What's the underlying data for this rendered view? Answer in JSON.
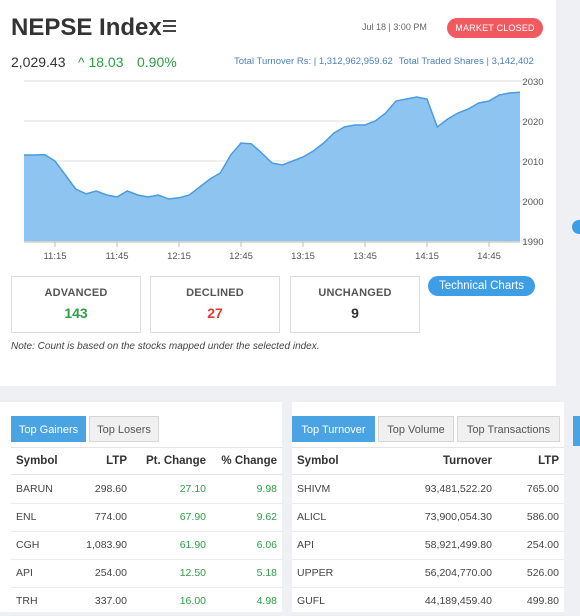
{
  "header": {
    "title": "NEPSE Index",
    "datetime": "Jul 18 | 3:00 PM",
    "status": "MARKET CLOSED",
    "index_value": "2,029.43",
    "change": "^ 18.03",
    "change_pct": "0.90%",
    "turnover_label": "Total Turnover Rs: | 1,312,962,959.62",
    "traded_shares_label": "Total Traded Shares | 3,142,402"
  },
  "colors": {
    "accent": "#3d9ee6",
    "area_fill": "#8ec5f0",
    "area_line": "#4a9be0",
    "positive": "#2e9d45",
    "negative": "#e53935",
    "closed_badge": "#f25a62"
  },
  "chart_data": {
    "type": "area",
    "title": "",
    "xlabel": "",
    "ylabel": "",
    "x_ticks": [
      "11:15",
      "11:45",
      "12:15",
      "12:45",
      "13:15",
      "13:45",
      "14:15",
      "14:45"
    ],
    "y_ticks": [
      1990,
      2000,
      2010,
      2020,
      2030
    ],
    "ylim": [
      1990,
      2030
    ],
    "y_axis_side": "right",
    "grid": true,
    "series": [
      {
        "x": [
          "11:00",
          "11:05",
          "11:10",
          "11:15",
          "11:20",
          "11:25",
          "11:30",
          "11:35",
          "11:40",
          "11:45",
          "11:50",
          "11:55",
          "12:00",
          "12:05",
          "12:10",
          "12:15",
          "12:20",
          "12:25",
          "12:30",
          "12:35",
          "12:40",
          "12:45",
          "12:50",
          "12:55",
          "13:00",
          "13:05",
          "13:10",
          "13:15",
          "13:20",
          "13:25",
          "13:30",
          "13:35",
          "13:40",
          "13:45",
          "13:50",
          "13:55",
          "14:00",
          "14:05",
          "14:10",
          "14:15",
          "14:20",
          "14:25",
          "14:30",
          "14:35",
          "14:40",
          "14:45",
          "14:50",
          "14:55",
          "15:00"
        ],
        "values": [
          2011.5,
          2011.5,
          2011.6,
          2010.0,
          2006.5,
          2003.0,
          2001.8,
          2002.5,
          2001.5,
          2001.0,
          2002.5,
          2001.5,
          2001.0,
          2001.5,
          2000.5,
          2000.8,
          2001.5,
          2003.5,
          2005.5,
          2007.0,
          2011.5,
          2014.5,
          2014.3,
          2012.0,
          2009.5,
          2009.0,
          2010.0,
          2011.0,
          2012.5,
          2014.5,
          2017.0,
          2018.5,
          2019.0,
          2019.0,
          2020.0,
          2022.0,
          2025.0,
          2025.5,
          2026.0,
          2025.5,
          2018.5,
          2020.5,
          2022.0,
          2023.0,
          2024.5,
          2025.0,
          2026.5,
          2027.0,
          2027.2
        ]
      }
    ]
  },
  "stats": {
    "advanced_label": "ADVANCED",
    "advanced_count": "143",
    "declined_label": "DECLINED",
    "declined_count": "27",
    "unchanged_label": "UNCHANGED",
    "unchanged_count": "9",
    "tech_charts_label": "Technical Charts",
    "note": "Note: Count is based on the stocks mapped under the selected index."
  },
  "gainers_panel": {
    "tabs": [
      "Top Gainers",
      "Top Losers"
    ],
    "active_tab": 0,
    "columns": [
      "Symbol",
      "LTP",
      "Pt. Change",
      "% Change"
    ],
    "rows": [
      [
        "BARUN",
        "298.60",
        "27.10",
        "9.98"
      ],
      [
        "ENL",
        "774.00",
        "67.90",
        "9.62"
      ],
      [
        "CGH",
        "1,083.90",
        "61.90",
        "6.06"
      ],
      [
        "API",
        "254.00",
        "12.50",
        "5.18"
      ],
      [
        "TRH",
        "337.00",
        "16.00",
        "4.98"
      ]
    ]
  },
  "turnover_panel": {
    "tabs": [
      "Top Turnover",
      "Top Volume",
      "Top Transactions"
    ],
    "active_tab": 0,
    "columns": [
      "Symbol",
      "Turnover",
      "LTP"
    ],
    "rows": [
      [
        "SHIVM",
        "93,481,522.20",
        "765.00"
      ],
      [
        "ALICL",
        "73,900,054.30",
        "586.00"
      ],
      [
        "API",
        "58,921,499.80",
        "254.00"
      ],
      [
        "UPPER",
        "56,204,770.00",
        "526.00"
      ],
      [
        "GUFL",
        "44,189,459.40",
        "499.80"
      ]
    ]
  }
}
